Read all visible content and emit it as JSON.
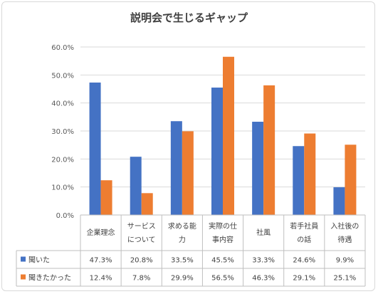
{
  "chart_data": {
    "type": "bar",
    "title": "説明会で生じるギャップ",
    "categories": [
      [
        "企業理念"
      ],
      [
        "サービス",
        "について"
      ],
      [
        "求める能",
        "力"
      ],
      [
        "実際の仕",
        "事内容"
      ],
      [
        "社風"
      ],
      [
        "若手社員",
        "の話"
      ],
      [
        "入社後の",
        "待遇"
      ]
    ],
    "series": [
      {
        "name": "聞いた",
        "color": "#4472c4",
        "values": [
          47.3,
          20.8,
          33.5,
          45.5,
          33.3,
          24.6,
          9.9
        ],
        "labels": [
          "47.3%",
          "20.8%",
          "33.5%",
          "45.5%",
          "33.3%",
          "24.6%",
          "9.9%"
        ]
      },
      {
        "name": "聞きたかった",
        "color": "#ed7d31",
        "values": [
          12.4,
          7.8,
          29.9,
          56.5,
          46.3,
          29.1,
          25.1
        ],
        "labels": [
          "12.4%",
          "7.8%",
          "29.9%",
          "56.5%",
          "46.3%",
          "29.1%",
          "25.1%"
        ]
      }
    ],
    "yticks": [
      "0.0%",
      "10.0%",
      "20.0%",
      "30.0%",
      "40.0%",
      "50.0%",
      "60.0%"
    ],
    "ylim": [
      0,
      60
    ],
    "grid": true,
    "legend": "data-table"
  }
}
